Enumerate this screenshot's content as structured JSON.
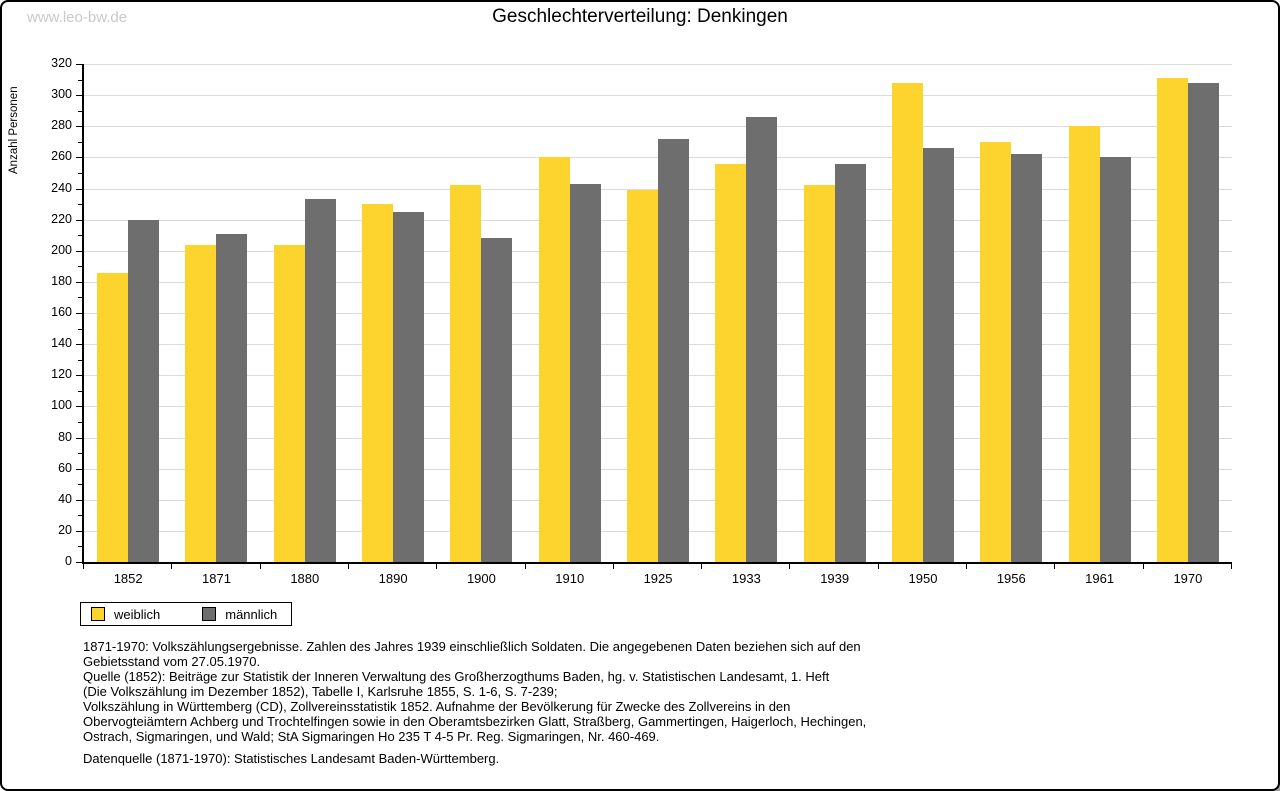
{
  "page": {
    "watermark": "www.leo-bw.de",
    "title": "Geschlechterverteilung: Denkingen"
  },
  "chart_data": {
    "type": "bar",
    "title": "Geschlechterverteilung: Denkingen",
    "xlabel": "",
    "ylabel": "Anzahl Personen",
    "ylim": [
      0,
      320
    ],
    "ytick_major_step": 20,
    "ytick_minor_step": 10,
    "grid": true,
    "legend_position": "bottom-left",
    "categories": [
      "1852",
      "1871",
      "1880",
      "1890",
      "1900",
      "1910",
      "1925",
      "1933",
      "1939",
      "1950",
      "1956",
      "1961",
      "1970"
    ],
    "series": [
      {
        "name": "weiblich",
        "color": "#fcd42d",
        "values": [
          186,
          204,
          204,
          230,
          242,
          260,
          239,
          256,
          242,
          308,
          270,
          280,
          311
        ]
      },
      {
        "name": "männlich",
        "color": "#6e6e6e",
        "values": [
          220,
          211,
          233,
          225,
          208,
          243,
          272,
          286,
          256,
          266,
          262,
          260,
          308
        ]
      }
    ]
  },
  "footer": {
    "lines": [
      "1871-1970: Volkszählungsergebnisse. Zahlen des Jahres 1939 einschließlich Soldaten. Die angegebenen Daten beziehen sich auf den",
      "Gebietsstand vom 27.05.1970.",
      "Quelle (1852): Beiträge zur Statistik der Inneren Verwaltung des Großherzogthums Baden, hg. v. Statistischen Landesamt, 1. Heft",
      "(Die Volkszählung im Dezember 1852), Tabelle I, Karlsruhe 1855, S. 1-6, S. 7-239;",
      "Volkszählung in Württemberg (CD), Zollvereinsstatistik 1852. Aufnahme der Bevölkerung für Zwecke des Zollvereins in den",
      "Obervogteiämtern Achberg und Trochtelfingen sowie in den Oberamtsbezirken Glatt, Straßberg, Gammertingen, Haigerloch, Hechingen,",
      "Ostrach, Sigmaringen, und Wald; StA Sigmaringen Ho 235 T 4-5 Pr. Reg. Sigmaringen, Nr. 460-469."
    ],
    "datasource": "Datenquelle (1871-1970): Statistisches Landesamt Baden-Württemberg."
  },
  "colors": {
    "bar_weiblich": "#fcd42d",
    "bar_maennlich": "#6e6e6e",
    "gridline": "#dbdbdb",
    "axis": "#000000",
    "watermark": "#c9c9c9",
    "frame_shadow": "#9e9e9e"
  }
}
